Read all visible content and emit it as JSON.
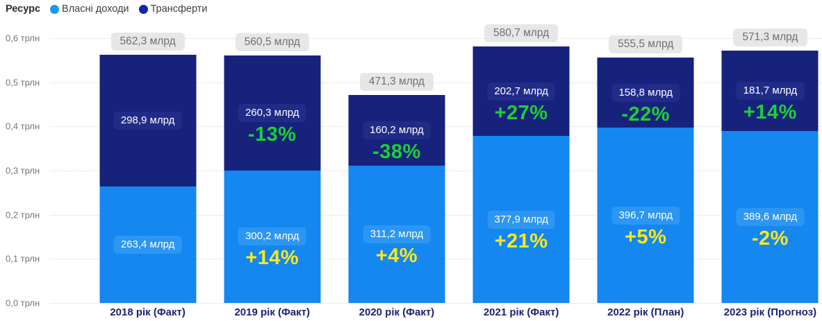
{
  "legend": {
    "title": "Ресурс",
    "items": [
      {
        "label": "Власні доходи",
        "dot_color": "#1e96f0"
      },
      {
        "label": "Трансферти",
        "dot_color": "#1126a8"
      }
    ]
  },
  "chart_data": {
    "type": "bar",
    "stacked": true,
    "title": "Ресурс",
    "unit": "млрд",
    "categories": [
      "2018 рік (Факт)",
      "2019 рік (Факт)",
      "2020 рік (Факт)",
      "2021 рік (Факт)",
      "2022 рік (План)",
      "2023 рік (Прогноз)"
    ],
    "series": [
      {
        "name": "Власні доходи",
        "color": "#1587f0",
        "label_bg": "#2d96f3",
        "pct_color": "#fde91a",
        "values": [
          263.4,
          300.2,
          311.2,
          377.9,
          396.7,
          389.6
        ],
        "labels": [
          "263,4 млрд",
          "300,2 млрд",
          "311,2 млрд",
          "377,9 млрд",
          "396,7 млрд",
          "389,6 млрд"
        ],
        "pct": [
          null,
          "+14%",
          "+4%",
          "+21%",
          "+5%",
          "-2%"
        ]
      },
      {
        "name": "Трансферти",
        "color": "#17227d",
        "label_bg": "#212c89",
        "pct_color": "#1bd133",
        "values": [
          298.9,
          260.3,
          160.2,
          202.7,
          158.8,
          181.7
        ],
        "labels": [
          "298,9 млрд",
          "260,3 млрд",
          "160,2 млрд",
          "202,7 млрд",
          "158,8 млрд",
          "181,7 млрд"
        ],
        "pct": [
          null,
          "-13%",
          "-38%",
          "+27%",
          "-22%",
          "+14%"
        ]
      }
    ],
    "totals": [
      562.3,
      560.5,
      471.3,
      580.7,
      555.5,
      571.3
    ],
    "total_labels": [
      "562,3 млрд",
      "560,5 млрд",
      "471,3 млрд",
      "580,7 млрд",
      "555,5 млрд",
      "571,3 млрд"
    ],
    "y_ticks": [
      "0,6 трлн",
      "0,5 трлн",
      "0,4 трлн",
      "0,3 трлн",
      "0,2 трлн",
      "0,1 трлн",
      "0,0 трлн"
    ],
    "ylim": [
      0,
      0.6
    ],
    "ylabel": "трлн",
    "grid": "dotted-horizontal",
    "legend_position": "top-left",
    "colors": {
      "own_revenue_bar": "#1587f0",
      "transfers_bar": "#17227d",
      "own_pct": "#fde91a",
      "transfers_pct": "#1bd133",
      "total_pill_bg": "#e7e7e7",
      "total_pill_text": "#6f6f6f",
      "x_label": "#1a2370",
      "y_tick_text": "#757575"
    }
  }
}
